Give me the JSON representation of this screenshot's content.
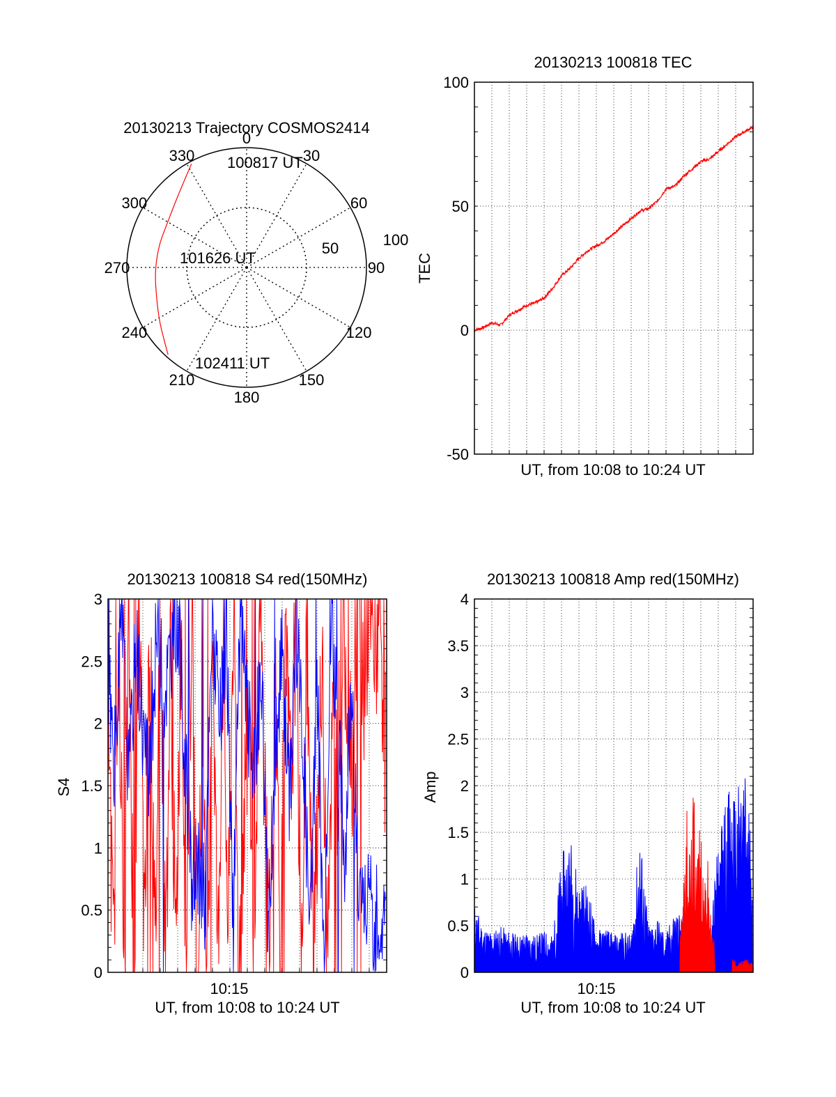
{
  "colors": {
    "red": "#ff0000",
    "blue": "#0000ff",
    "axis": "#000000",
    "grid": "#000000"
  },
  "chart_data": [
    {
      "type": "polar",
      "title": "20130213 Trajectory COSMOS2414",
      "azimuth_labels": [
        "0",
        "30",
        "60",
        "90",
        "120",
        "150",
        "180",
        "210",
        "240",
        "270",
        "300",
        "330"
      ],
      "radial_labels": [
        "50",
        "100"
      ],
      "annotations": [
        "100817 UT",
        "101626 UT",
        "102411 UT"
      ],
      "series": [
        {
          "color": "red",
          "points": [
            {
              "az": 332,
              "r": 98
            },
            {
              "az": 318,
              "r": 84
            },
            {
              "az": 300,
              "r": 76
            },
            {
              "az": 284,
              "r": 75
            },
            {
              "az": 268,
              "r": 76
            },
            {
              "az": 252,
              "r": 79
            },
            {
              "az": 237,
              "r": 86
            },
            {
              "az": 222,
              "r": 98
            }
          ]
        }
      ]
    },
    {
      "type": "line",
      "title": "20130213 100818 TEC",
      "xlabel": "UT, from 10:08 to 10:24 UT",
      "ylabel": "TEC",
      "ylim": [
        -50,
        100
      ],
      "yticks": [
        "-50",
        "0",
        "50",
        "100"
      ],
      "grid": true,
      "series": [
        {
          "color": "red",
          "x": [
            0,
            0.5,
            1,
            1.5,
            2,
            2.5,
            3,
            3.5,
            4,
            4.5,
            5,
            5.5,
            6,
            6.5,
            7,
            7.5,
            8,
            8.5,
            9,
            9.5,
            10,
            10.5,
            11,
            11.5,
            12,
            12.5,
            13,
            13.5,
            14,
            14.5,
            15,
            15.5,
            16
          ],
          "y": [
            0,
            1,
            3,
            2,
            6,
            8,
            10,
            11,
            13,
            17,
            22,
            25,
            29,
            32,
            34,
            36,
            39,
            42,
            45,
            48,
            49,
            52,
            57,
            58,
            62,
            65,
            68,
            69,
            72,
            75,
            78,
            80,
            82
          ]
        }
      ]
    },
    {
      "type": "line",
      "title": "20130213 100818 S4 red(150MHz)",
      "xlabel": "UT, from 10:08 to 10:24 UT",
      "ylabel": "S4",
      "ylim": [
        0,
        3
      ],
      "yticks": [
        "0",
        "0.5",
        "1",
        "1.5",
        "2",
        "2.5",
        "3"
      ],
      "xticks": [
        "10:15"
      ],
      "grid": true,
      "series": [
        {
          "color": "red",
          "x": [
            0,
            0.3,
            0.6,
            0.9,
            1.2,
            1.5,
            1.8,
            2.1,
            2.4,
            2.7,
            3,
            3.3,
            3.6,
            3.9,
            4.2,
            4.5,
            4.8,
            5.1,
            5.4,
            5.7,
            6,
            6.3,
            6.6,
            6.9,
            7.2,
            7.5,
            7.8,
            8.1,
            8.4,
            8.7,
            9,
            9.3,
            9.6,
            9.9,
            10.2,
            10.5,
            10.8,
            11.1,
            11.4,
            11.7,
            12,
            12.3,
            12.6,
            12.9,
            13.2,
            13.5,
            13.8,
            14.1,
            14.4,
            14.7,
            15,
            15.3,
            15.6,
            15.9
          ],
          "y": [
            2.5,
            0,
            3,
            0,
            2.8,
            0,
            3,
            0.1,
            2.9,
            0,
            3,
            0,
            2.6,
            0,
            3,
            0,
            2.9,
            0,
            1.5,
            0,
            3,
            0,
            2.7,
            0.2,
            3,
            0,
            1.2,
            2.4,
            0,
            3,
            1.6,
            0,
            2.8,
            0,
            2.5,
            1.4,
            3,
            0,
            2.7,
            0.5,
            1.2,
            2.3,
            0.6,
            1.9,
            1.6,
            3,
            2.1,
            1.7,
            3,
            2.2,
            3,
            2.4,
            3,
            1.8
          ]
        },
        {
          "color": "blue",
          "x": [
            0,
            0.4,
            0.8,
            1.2,
            1.6,
            2,
            2.4,
            2.8,
            3.2,
            3.6,
            4,
            4.4,
            4.8,
            5.2,
            5.6,
            6,
            6.4,
            6.8,
            7.2,
            7.6,
            8,
            8.4,
            8.8,
            9.2,
            9.6,
            10,
            10.4,
            10.8,
            11.2,
            11.6,
            12,
            12.4,
            12.8,
            13.2,
            13.6,
            14,
            14.4,
            14.8,
            15.2,
            15.6,
            15.9
          ],
          "y": [
            2.3,
            1.7,
            2.9,
            1.5,
            2.7,
            2.0,
            1.5,
            2.8,
            2.2,
            2.6,
            2.9,
            1.8,
            0.7,
            0.8,
            0.6,
            2.9,
            1.9,
            2.7,
            0.4,
            2.9,
            2.1,
            1.6,
            2.5,
            0.5,
            1.7,
            2.6,
            1.4,
            2.8,
            1.9,
            0.3,
            2.4,
            0.1,
            2.9,
            1.9,
            0.9,
            2.5,
            0.5,
            0.6,
            0.45,
            0.4,
            0.45
          ]
        }
      ]
    },
    {
      "type": "line",
      "title": "20130213 100818 Amp red(150MHz)",
      "xlabel": "UT, from 10:08 to 10:24 UT",
      "ylabel": "Amp",
      "ylim": [
        0,
        4
      ],
      "yticks": [
        "0",
        "0.5",
        "1",
        "1.5",
        "2",
        "2.5",
        "3",
        "3.5",
        "4"
      ],
      "xticks": [
        "10:15"
      ],
      "grid": true,
      "series": [
        {
          "color": "red",
          "x": [
            11.8,
            12.0,
            12.2,
            12.4,
            12.6,
            12.8,
            13.0,
            13.2,
            13.4,
            13.6,
            13.8
          ],
          "y": [
            0.3,
            1.1,
            1.8,
            1.2,
            2.05,
            1.4,
            1.7,
            0.9,
            1.2,
            0.5,
            0.3
          ]
        },
        {
          "color": "red",
          "x": [
            14.8,
            15.2,
            15.6,
            15.9
          ],
          "y": [
            0.15,
            0.1,
            0.15,
            0.1
          ]
        },
        {
          "color": "blue",
          "x": [
            0,
            0.5,
            1,
            1.5,
            2,
            2.5,
            3,
            3.5,
            4,
            4.5,
            5,
            5.5,
            6,
            6.5,
            7,
            7.5,
            8,
            8.5,
            9,
            9.5,
            10,
            10.5,
            11,
            11.5,
            12,
            12.5,
            13,
            13.5,
            14,
            14.5,
            15,
            15.5,
            15.9
          ],
          "y": [
            0.75,
            0.5,
            0.45,
            0.5,
            0.45,
            0.4,
            0.45,
            0.4,
            0.45,
            0.4,
            1.25,
            1.5,
            1.0,
            0.95,
            0.45,
            0.5,
            0.4,
            0.45,
            0.4,
            1.55,
            0.5,
            0.6,
            0.4,
            0.7,
            0.6,
            0.55,
            0.6,
            0.45,
            1.4,
            2.0,
            1.9,
            2.25,
            1.6
          ]
        }
      ]
    }
  ]
}
